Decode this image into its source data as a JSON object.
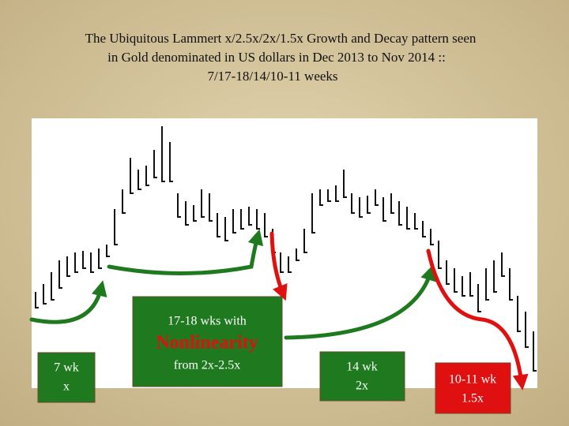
{
  "slide": {
    "title_lines": [
      "The Ubiquitous Lammert x/2.5x/2x/1.5x Growth and Decay pattern seen",
      "in Gold denominated in US dollars in Dec 2013 to Nov 2014 ::",
      "7/17-18/14/10-11 weeks"
    ],
    "boxes": [
      {
        "lines": [
          "7 wk",
          "x"
        ]
      },
      {
        "lines": [
          "17-18 wks with",
          "Nonlinearity",
          "from 2x-2.5x"
        ]
      },
      {
        "lines": [
          "14 wk",
          "2x"
        ]
      },
      {
        "lines": [
          "10-11 wk",
          "1.5x"
        ]
      }
    ]
  }
}
